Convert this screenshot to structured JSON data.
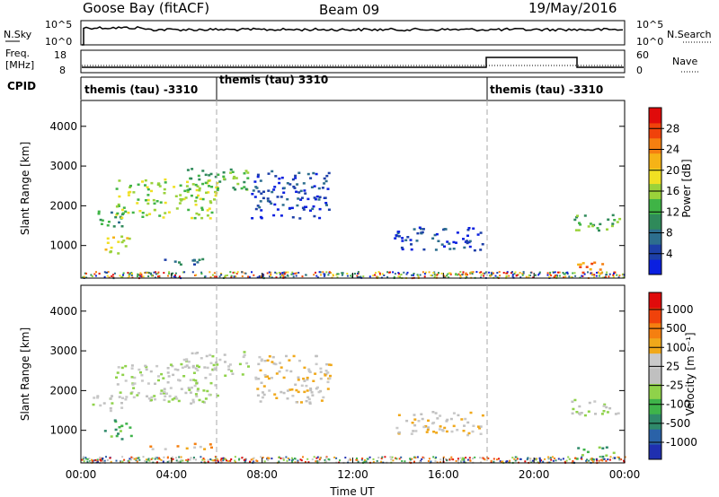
{
  "header": {
    "station": "Goose Bay (fitACF)",
    "beam": "Beam 09",
    "date": "19/May/2016"
  },
  "top_strip": {
    "left_label": "N.Sky",
    "left_ticks": [
      "10^5",
      "10^0"
    ],
    "right_label": "N.Search",
    "right_ticks": [
      "10^5",
      "10^0"
    ]
  },
  "freq_strip": {
    "left_label_1": "Freq.",
    "left_label_2": "[MHz]",
    "left_ticks": [
      "18",
      "8"
    ],
    "right_label": "Nave",
    "right_ticks": [
      "60",
      "0"
    ]
  },
  "cpid": {
    "label": "CPID",
    "segments": [
      {
        "start_hour": 0,
        "text": "themis (tau) -3310"
      },
      {
        "start_hour": 6,
        "text": "themis (tau) 3310"
      },
      {
        "start_hour": 18,
        "text": "themis (tau) -3310"
      }
    ]
  },
  "chart_data": [
    {
      "type": "heatmap",
      "name": "power",
      "ylabel": "Slant Range [km]",
      "yticks": [
        1000,
        2000,
        3000,
        4000
      ],
      "ylim": [
        180,
        4650
      ],
      "xlim_hours": [
        0,
        24
      ],
      "colorbar": {
        "label": "Power [dB]",
        "ticks": [
          "4",
          "8",
          "12",
          "16",
          "20",
          "24",
          "28"
        ],
        "colors": [
          "#0a1fe0",
          "#1d3fa8",
          "#2d6e8e",
          "#2f8a5a",
          "#3fb446",
          "#9ad23a",
          "#f0e023",
          "#f6b316",
          "#f57f10",
          "#f0420b",
          "#e00b0b"
        ]
      },
      "bands": [
        {
          "t0": 0.3,
          "t1": 1.8,
          "r0": 1500,
          "r1": 1900,
          "color_index": 3
        },
        {
          "t0": 1.0,
          "t1": 2.2,
          "r0": 800,
          "r1": 1300,
          "color_index": 6
        },
        {
          "t0": 1.5,
          "t1": 6.0,
          "r0": 1700,
          "r1": 2700,
          "color_index": 5
        },
        {
          "t0": 4.5,
          "t1": 7.5,
          "r0": 2400,
          "r1": 3000,
          "color_index": 4
        },
        {
          "t0": 7.5,
          "t1": 11.0,
          "r0": 1700,
          "r1": 2900,
          "color_index": 1
        },
        {
          "t0": 13.8,
          "t1": 17.8,
          "r0": 900,
          "r1": 1500,
          "color_index": 1
        },
        {
          "t0": 21.5,
          "t1": 23.8,
          "r0": 1400,
          "r1": 1800,
          "color_index": 4
        },
        {
          "t0": 21.8,
          "t1": 23.5,
          "r0": 300,
          "r1": 600,
          "color_index": 8
        },
        {
          "t0": 3.0,
          "t1": 5.8,
          "r0": 550,
          "r1": 700,
          "color_index": 2
        }
      ]
    },
    {
      "type": "heatmap",
      "name": "velocity",
      "ylabel": "Slant Range [km]",
      "yticks": [
        1000,
        2000,
        3000,
        4000
      ],
      "ylim": [
        180,
        4650
      ],
      "xlim_hours": [
        0,
        24
      ],
      "xticks": [
        "00:00",
        "04:00",
        "08:00",
        "12:00",
        "16:00",
        "20:00",
        "00:00"
      ],
      "xlabel": "Time UT",
      "colorbar": {
        "label": "Velocity [m s⁻¹]",
        "ticks": [
          "1000",
          "500",
          "100",
          "25",
          "-25",
          "-100",
          "-500",
          "-1000"
        ],
        "colors": [
          "#1f2fb0",
          "#2a62a8",
          "#2f8a6a",
          "#3fb44a",
          "#8fd24a",
          "#c0c0c0",
          "#c9c9c9",
          "#f0a81a",
          "#f57f10",
          "#f0420b",
          "#e00b0b"
        ]
      },
      "bands": [
        {
          "t0": 0.3,
          "t1": 1.8,
          "r0": 1500,
          "r1": 1900,
          "color_index": 5
        },
        {
          "t0": 1.0,
          "t1": 2.2,
          "r0": 800,
          "r1": 1300,
          "color_index": 3
        },
        {
          "t0": 1.5,
          "t1": 6.0,
          "r0": 1700,
          "r1": 2700,
          "color_index": 5
        },
        {
          "t0": 4.5,
          "t1": 7.5,
          "r0": 2400,
          "r1": 3000,
          "color_index": 5
        },
        {
          "t0": 7.5,
          "t1": 11.0,
          "r0": 1700,
          "r1": 2900,
          "color_index": 6
        },
        {
          "t0": 13.8,
          "t1": 17.8,
          "r0": 900,
          "r1": 1500,
          "color_index": 6
        },
        {
          "t0": 21.5,
          "t1": 23.8,
          "r0": 1400,
          "r1": 1800,
          "color_index": 5
        },
        {
          "t0": 21.8,
          "t1": 23.5,
          "r0": 300,
          "r1": 600,
          "color_index": 3
        },
        {
          "t0": 3.0,
          "t1": 5.8,
          "r0": 550,
          "r1": 700,
          "color_index": 7
        }
      ]
    }
  ]
}
